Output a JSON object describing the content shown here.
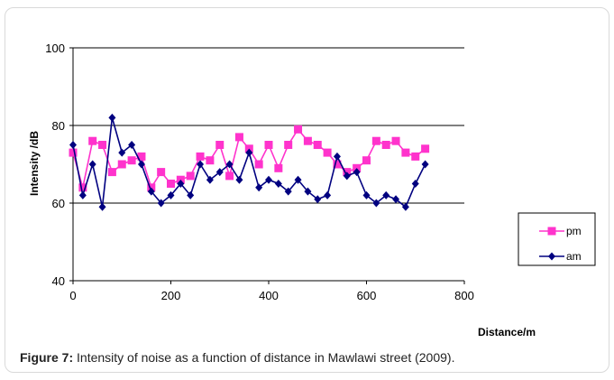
{
  "figure": {
    "caption_label": "Figure 7:",
    "caption_text": " Intensity of noise as a function of distance in Mawlawi street (2009)."
  },
  "chart_data": {
    "type": "line",
    "xlabel": "Distance/m",
    "ylabel": "Intensity /dB",
    "xlim": [
      0,
      800
    ],
    "ylim": [
      40,
      100
    ],
    "xticks": [
      0,
      200,
      400,
      600,
      800
    ],
    "yticks": [
      40,
      60,
      80,
      100
    ],
    "grid": "horizontal",
    "legend_position": "right",
    "series": [
      {
        "name": "pm",
        "color": "#ff33cc",
        "marker": "square",
        "x": [
          0,
          20,
          40,
          60,
          80,
          100,
          120,
          140,
          160,
          180,
          200,
          220,
          240,
          260,
          280,
          300,
          320,
          340,
          360,
          380,
          400,
          420,
          440,
          460,
          480,
          500,
          520,
          540,
          560,
          580,
          600,
          620,
          640,
          660,
          680,
          700,
          720
        ],
        "y": [
          73,
          64,
          76,
          75,
          68,
          70,
          71,
          72,
          64,
          68,
          65,
          66,
          67,
          72,
          71,
          75,
          67,
          77,
          74,
          70,
          75,
          69,
          75,
          79,
          76,
          75,
          73,
          70,
          68,
          69,
          71,
          76,
          75,
          76,
          73,
          72,
          74
        ]
      },
      {
        "name": "am",
        "color": "#000080",
        "marker": "diamond",
        "x": [
          0,
          20,
          40,
          60,
          80,
          100,
          120,
          140,
          160,
          180,
          200,
          220,
          240,
          260,
          280,
          300,
          320,
          340,
          360,
          380,
          400,
          420,
          440,
          460,
          480,
          500,
          520,
          540,
          560,
          580,
          600,
          620,
          640,
          660,
          680,
          700,
          720
        ],
        "y": [
          75,
          62,
          70,
          59,
          82,
          73,
          75,
          70,
          63,
          60,
          62,
          65,
          62,
          70,
          66,
          68,
          70,
          66,
          73,
          64,
          66,
          65,
          63,
          66,
          63,
          61,
          62,
          72,
          67,
          68,
          62,
          60,
          62,
          61,
          59,
          65,
          70
        ]
      }
    ]
  }
}
